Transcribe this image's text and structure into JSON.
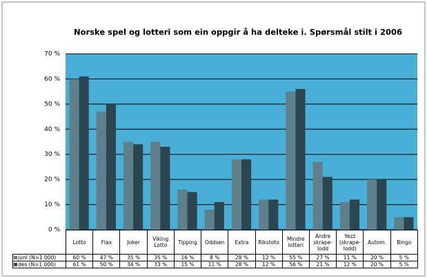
{
  "chart_data": {
    "type": "bar",
    "title": "Norske spel og lotteri som ein oppgir å ha delteke i. Spørsmål stilt i 2006",
    "categories": [
      "Lotto",
      "Flax",
      "Joker",
      "Viking\nLotto",
      "Tipping",
      "Oddsen",
      "Extra",
      "Rikstoto",
      "Mindre\nlotteri",
      "Andre\nskrape-\nlodd",
      "Yezz\n(skrape-\nlodd)",
      "Autom.",
      "Bingo"
    ],
    "series": [
      {
        "name": "juni (N=1 000)",
        "color": "#5e7f8c",
        "values": [
          60,
          47,
          35,
          35,
          16,
          8,
          28,
          12,
          55,
          27,
          11,
          20,
          5
        ],
        "value_labels": [
          "60 %",
          "47 %",
          "35 %",
          "35 %",
          "16 %",
          "8 %",
          "28 %",
          "12 %",
          "55 %",
          "27 %",
          "11 %",
          "20 %",
          "5 %"
        ]
      },
      {
        "name": "des (N=1 000)",
        "color": "#2c4651",
        "values": [
          61,
          50,
          34,
          33,
          15,
          11,
          28,
          12,
          56,
          21,
          12,
          20,
          5
        ],
        "value_labels": [
          "61 %",
          "50 %",
          "34 %",
          "33 %",
          "15 %",
          "11 %",
          "28 %",
          "12 %",
          "56 %",
          "21 %",
          "12 %",
          "20 %",
          "5 %"
        ]
      }
    ],
    "ylim": [
      0,
      70
    ],
    "yticks": [
      {
        "value": 0,
        "label": "0 %"
      },
      {
        "value": 10,
        "label": "10 %"
      },
      {
        "value": 20,
        "label": "20 %"
      },
      {
        "value": 30,
        "label": "30 %"
      },
      {
        "value": 40,
        "label": "40 %"
      },
      {
        "value": 50,
        "label": "50 %"
      },
      {
        "value": 60,
        "label": "60 %"
      },
      {
        "value": 70,
        "label": "70 %"
      }
    ],
    "grid": true,
    "plot_background": "#4aafd6"
  }
}
